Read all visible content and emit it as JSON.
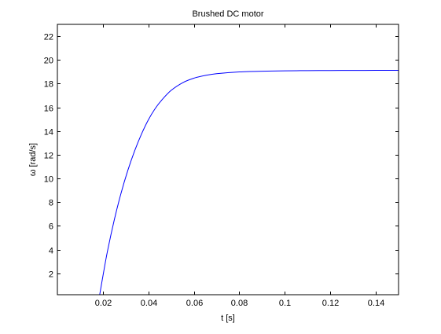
{
  "chart_data": {
    "type": "line",
    "title": "Brushed DC motor",
    "xlabel": "t [s]",
    "ylabel": "ω [rad/s]",
    "xlim": [
      0,
      0.15
    ],
    "ylim": [
      0.2,
      23
    ],
    "xticks": [
      0.02,
      0.04,
      0.06,
      0.08,
      0.1,
      0.12,
      0.14
    ],
    "xtick_labels": [
      "0.02",
      "0.04",
      "0.06",
      "0.08",
      "0.1",
      "0.12",
      "0.14"
    ],
    "yticks": [
      2,
      4,
      6,
      8,
      10,
      12,
      14,
      16,
      18,
      20,
      22
    ],
    "ytick_labels": [
      "2",
      "4",
      "6",
      "8",
      "10",
      "12",
      "14",
      "16",
      "18",
      "20",
      "22"
    ],
    "grid": false,
    "line_color": "#0000ff",
    "series": [
      {
        "x": [
          0.0186,
          0.02,
          0.022,
          0.025,
          0.028,
          0.031,
          0.034,
          0.037,
          0.04,
          0.043,
          0.046,
          0.05,
          0.055,
          0.06,
          0.065,
          0.07,
          0.08,
          0.09,
          0.1,
          0.11,
          0.12,
          0.13,
          0.14,
          0.15
        ],
        "y": [
          0.2,
          1.75,
          3.85,
          6.5,
          8.77,
          10.7,
          12.35,
          13.76,
          14.95,
          15.9,
          16.64,
          17.43,
          18.07,
          18.46,
          18.69,
          18.84,
          18.99,
          19.05,
          19.08,
          19.1,
          19.11,
          19.115,
          19.12,
          19.12
        ]
      }
    ]
  }
}
